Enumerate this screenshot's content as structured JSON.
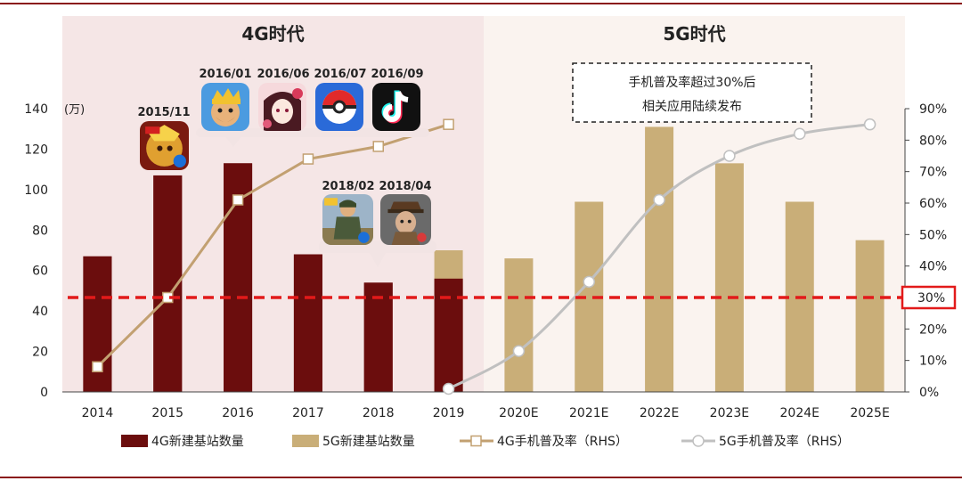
{
  "chart_data": {
    "type": "bar",
    "categories": [
      "2014",
      "2015",
      "2016",
      "2017",
      "2018",
      "2019",
      "2020E",
      "2021E",
      "2022E",
      "2023E",
      "2024E",
      "2025E"
    ],
    "y_left_label": "(万)",
    "y_left_ticks": [
      "0",
      "20",
      "40",
      "60",
      "80",
      "100",
      "120",
      "140"
    ],
    "y_left_range": [
      0,
      140
    ],
    "y_right_ticks": [
      "0%",
      "10%",
      "20%",
      "30%",
      "40%",
      "50%",
      "60%",
      "70%",
      "80%",
      "90%"
    ],
    "y_right_range": [
      0,
      90
    ],
    "series": [
      {
        "name": "4G新建基站数量",
        "type": "bar",
        "axis": "left",
        "color": "#6b0d0d",
        "values": [
          67,
          107,
          113,
          68,
          54,
          56,
          null,
          null,
          null,
          null,
          null,
          null
        ]
      },
      {
        "name": "5G新建基站数量",
        "type": "bar",
        "axis": "left",
        "color": "#c9ae78",
        "values": [
          null,
          null,
          null,
          null,
          null,
          70,
          66,
          94,
          131,
          113,
          94,
          75
        ]
      },
      {
        "name": "4G手机普及率（RHS）",
        "type": "line",
        "axis": "right",
        "color": "#c2a071",
        "marker": "square",
        "values": [
          8,
          30,
          61,
          74,
          78,
          85,
          null,
          null,
          null,
          null,
          null,
          null
        ]
      },
      {
        "name": "5G手机普及率（RHS）",
        "type": "line",
        "axis": "right",
        "color": "#c0c0c0",
        "marker": "circle",
        "values": [
          null,
          null,
          null,
          null,
          null,
          1,
          13,
          35,
          61,
          75,
          82,
          85
        ]
      }
    ],
    "reference_line": {
      "value": 30,
      "axis": "right",
      "label": "30%",
      "color": "#e21a1a"
    },
    "regions": [
      {
        "label": "4G时代",
        "from": "2014",
        "to": "2019",
        "color": "#f5e6e6"
      },
      {
        "label": "5G时代",
        "from": "2020E",
        "to": "2025E",
        "color": "#faf3ef"
      }
    ],
    "annotation_box": [
      "手机普及率超过30%后",
      "相关应用陆续发布"
    ],
    "date_labels": [
      "2015/11",
      "2016/01",
      "2016/06",
      "2016/07",
      "2016/09",
      "2018/02",
      "2018/04"
    ],
    "legend_position": "bottom",
    "grid": false
  },
  "app_icons": [
    {
      "date": "2015/11",
      "icon": "hero-game-icon"
    },
    {
      "date": "2016/01",
      "icon": "clash-royale-icon"
    },
    {
      "date": "2016/06",
      "icon": "onmyoji-icon"
    },
    {
      "date": "2016/07",
      "icon": "pokemon-go-icon"
    },
    {
      "date": "2016/09",
      "icon": "tiktok-icon"
    },
    {
      "date": "2018/02",
      "icon": "pubg-icon"
    },
    {
      "date": "2018/04",
      "icon": "identity-v-icon"
    }
  ]
}
